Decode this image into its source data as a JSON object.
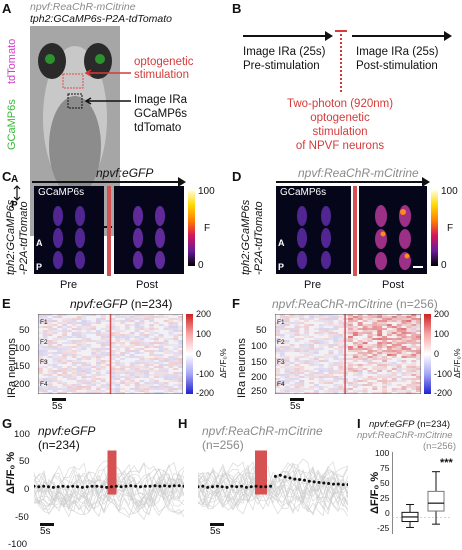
{
  "panels": {
    "A": {
      "letter": "A",
      "line1": "npvf:ReaChR-mCitrine",
      "line2": "tph2:GCaMP6s-P2A-tdTomato",
      "side_tdtomato": "tdTomato",
      "side_gcamp": "GCaMP6s",
      "stim_label_1": "optogenetic",
      "stim_label_2": "stimulation",
      "img_label_1": "Image IRa",
      "img_label_2": "GCaMP6s",
      "img_label_3": "tdTomato",
      "axis_a": "A",
      "axis_p": "P"
    },
    "B": {
      "letter": "B",
      "pre_1": "Image IRa (25s)",
      "pre_2": "Pre-stimulation",
      "post_1": "Image IRa (25s)",
      "post_2": "Post-stimulation",
      "two_photon_1": "Two-photon (920nm)",
      "two_photon_2": "optogenetic stimulation",
      "two_photon_3": "of NPVF neurons"
    },
    "C": {
      "letter": "C",
      "title": "npvf:eGFP",
      "gcamp": "GCaMP6s",
      "side_1": "tph2:GCaMP6s",
      "side_2": "-P2A-tdTomato",
      "pre": "Pre",
      "post": "Post",
      "cbar_max": "100",
      "cbar_min": "0",
      "cbar_label": "F",
      "axis_a": "A",
      "axis_p": "P"
    },
    "D": {
      "letter": "D",
      "title": "npvf:ReaChR-mCitrine",
      "gcamp": "GCaMP6s",
      "side_1": "tph2:GCaMP6s",
      "side_2": "-P2A-tdTomato",
      "pre": "Pre",
      "post": "Post",
      "cbar_max": "100",
      "cbar_min": "0",
      "cbar_label": "F",
      "axis_a": "A",
      "axis_p": "P"
    },
    "E": {
      "letter": "E",
      "title": "npvf:eGFP",
      "title_n": " (n=234)",
      "ylabel": "IRa neurons",
      "yticks": [
        "50",
        "100",
        "150",
        "200"
      ],
      "fticks": [
        "F1",
        "F2",
        "F3",
        "F4"
      ],
      "scale": "5s",
      "cbar_ticks": [
        "200",
        "100",
        "0",
        "-100",
        "-200"
      ],
      "cbar_label": "ΔF/F₀%"
    },
    "F": {
      "letter": "F",
      "title": "npvf:ReaChR-mCitrine",
      "title_n": " (n=256)",
      "ylabel": "IRa neurons",
      "yticks": [
        "50",
        "100",
        "150",
        "200",
        "250"
      ],
      "fticks": [
        "F1",
        "F2",
        "F3",
        "F4"
      ],
      "scale": "5s",
      "cbar_ticks": [
        "200",
        "100",
        "0",
        "-100",
        "-200"
      ],
      "cbar_label": "ΔF/F₀%"
    },
    "G": {
      "letter": "G",
      "title": "npvf:eGFP",
      "n": "(n=234)",
      "ylabel": "ΔF/F₀ %",
      "yticks": [
        "100",
        "50",
        "0",
        "-50",
        "-100"
      ],
      "scale": "5s"
    },
    "H": {
      "letter": "H",
      "title": "npvf:ReaChR-mCitrine",
      "n": "(n=256)",
      "scale": "5s"
    },
    "I": {
      "letter": "I",
      "legend_1": "npvf:eGFP",
      "legend_1n": " (n=234)",
      "legend_2": "npvf:ReaChR-mCitrine",
      "legend_2n": "(n=256)",
      "ylabel": "ΔF/F₀ %",
      "yticks": [
        "100",
        "75",
        "50",
        "25",
        "0",
        "-25"
      ],
      "sig": "***"
    }
  },
  "chart_data": [
    {
      "type": "line",
      "panel": "G",
      "series": [
        {
          "values": [
            5,
            4,
            5,
            4,
            3,
            4,
            5,
            4,
            5,
            4,
            3,
            4,
            5,
            5,
            4,
            3,
            4,
            5,
            4,
            5,
            6,
            5,
            4,
            5,
            5,
            6,
            5,
            6,
            5,
            6,
            6,
            5
          ]
        }
      ],
      "ylim": [
        -100,
        100
      ],
      "stim_window": [
        0.49,
        0.55
      ],
      "color": "#111111"
    },
    {
      "type": "line",
      "panel": "H",
      "series": [
        {
          "values": [
            4,
            5,
            3,
            4,
            5,
            4,
            3,
            5,
            4,
            5,
            3,
            4,
            5,
            4,
            4,
            5,
            23,
            25,
            22,
            20,
            18,
            17,
            16,
            14,
            13,
            12,
            11,
            10,
            9,
            9,
            8,
            8
          ]
        }
      ],
      "ylim": [
        -100,
        100
      ],
      "stim_window": [
        0.38,
        0.46
      ],
      "color": "#111111"
    },
    {
      "type": "box",
      "panel": "I",
      "categories": [
        "npvf:eGFP",
        "npvf:ReaChR-mCitrine"
      ],
      "boxes": [
        {
          "whisker_low": -15,
          "q1": -6,
          "median": 1,
          "q3": 8,
          "whisker_high": 20
        },
        {
          "whisker_low": -10,
          "q1": 10,
          "median": 22,
          "q3": 40,
          "whisker_high": 70
        }
      ],
      "ylim": [
        -25,
        100
      ]
    }
  ],
  "colors": {
    "accent_red": "#d43b3b",
    "stim_bar": "#d55152",
    "gcamp_green": "#3aba3a",
    "tdtomato_magenta": "#d040c8"
  }
}
